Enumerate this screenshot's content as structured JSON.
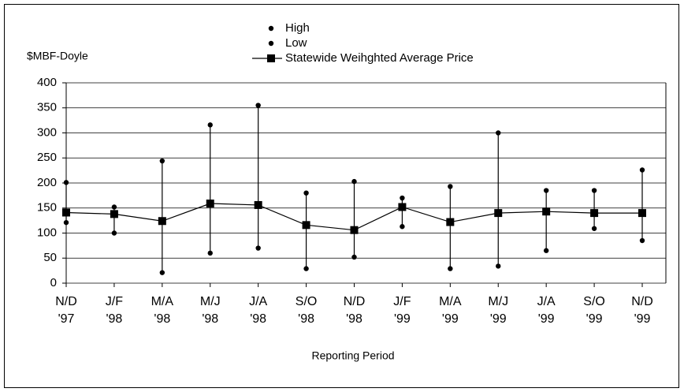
{
  "chart_data": {
    "type": "hilo-line",
    "y_label": "$MBF-Doyle",
    "x_label": "Reporting Period",
    "categories": [
      "N/D\n'97",
      "J/F\n'98",
      "M/A\n'98",
      "M/J\n'98",
      "J/A\n'98",
      "S/O\n'98",
      "N/D\n'98",
      "J/F\n'99",
      "M/A\n'99",
      "M/J\n'99",
      "J/A\n'99",
      "S/O\n'99",
      "N/D\n'99"
    ],
    "series": [
      {
        "name": "High",
        "color": "#000000",
        "marker": "circle",
        "line": false,
        "values": [
          201,
          152,
          244,
          316,
          355,
          180,
          203,
          170,
          193,
          300,
          185,
          185,
          226
        ]
      },
      {
        "name": "Low",
        "color": "#000000",
        "marker": "circle",
        "line": false,
        "values": [
          121,
          100,
          21,
          60,
          70,
          29,
          52,
          113,
          29,
          34,
          65,
          109,
          85
        ]
      },
      {
        "name": "Statewide Weihghted Average Price",
        "color": "#000000",
        "marker": "square",
        "line": true,
        "values": [
          141,
          138,
          124,
          159,
          156,
          116,
          106,
          152,
          122,
          140,
          143,
          140,
          140
        ]
      }
    ],
    "hilo_lines": true,
    "ylim": [
      0,
      400
    ],
    "yticks": [
      0,
      50,
      100,
      150,
      200,
      250,
      300,
      350,
      400
    ],
    "grid": true
  }
}
